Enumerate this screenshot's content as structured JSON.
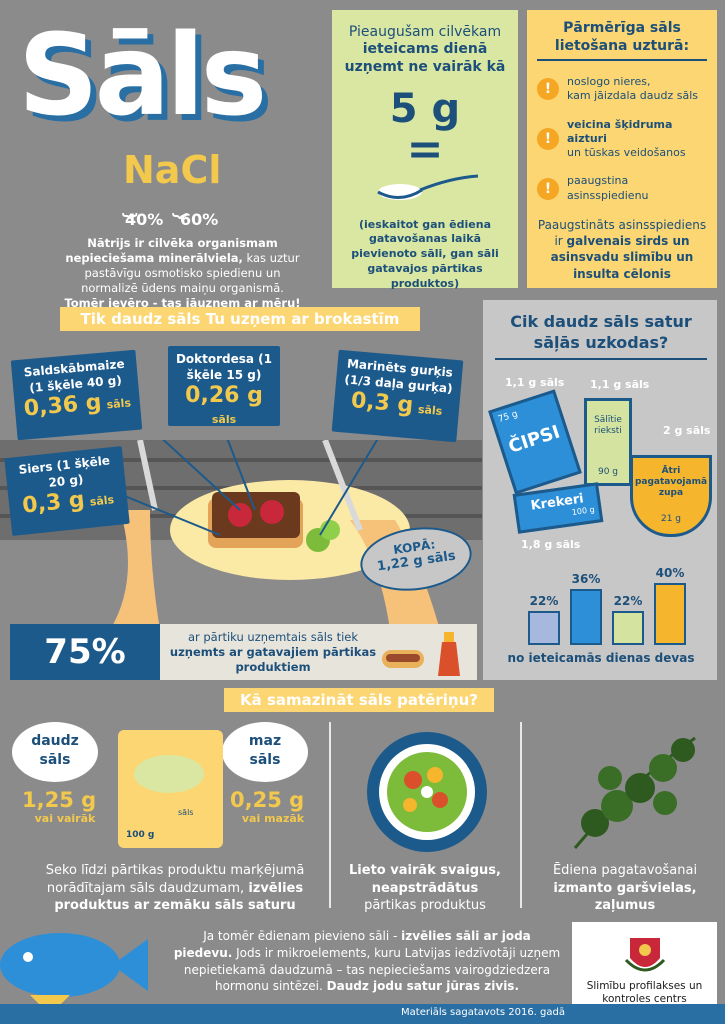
{
  "header": {
    "title": "Sāls",
    "formula": "NaCl",
    "pct_na": "40%",
    "pct_cl": "60%",
    "intro_b1": "Nātrijs ir  cilvēka organismam nepieciešama minerālviela,",
    "intro_t1": " kas uztur pastāvīgu osmotisko spiedienu un normalizē ūdens maiņu organismā.",
    "intro_b2": "Tomēr ievēro - tas jāuzņem ar mēru!"
  },
  "daily": {
    "line1": "Pieaugušam cilvēkam",
    "line2": "ieteicams dienā uzņemt ne vairāk kā",
    "amount": "5 g",
    "eq": "=",
    "note": "(ieskaitot gan ēdiena gatavošanas laikā pievienoto sāli, gan sāli gatavajos pārtikas produktos)"
  },
  "excess": {
    "title": "Pārmērīga sāls lietošana uzturā:",
    "items": [
      {
        "b": "noslogo nieres,",
        "t": "kam jāizdala daudz sāls"
      },
      {
        "b": "veicina šķidruma aizturi",
        "t": "un tūskas veidošanos"
      },
      {
        "b": "paaugstina asinsspiedienu",
        "t": ""
      }
    ],
    "footer_t": "Paaugstināts asinsspiediens ir ",
    "footer_b": "galvenais sirds un asinsvadu slimību un insulta cēlonis"
  },
  "breakfast": {
    "title": "Tik daudz sāls Tu uzņem ar brokastīm",
    "bread_label": "Saldskābmaize (1 šķēle 40 g)",
    "bread_amt": "0,36 g",
    "sausage_label": "Doktordesa (1 šķēle 15 g)",
    "sausage_amt": "0,26 g",
    "pickle_label": "Marinēts gurķis (1/3 daļa gurķa)",
    "pickle_amt": "0,3 g",
    "cheese_label": "Siers (1 šķēle 20 g)",
    "cheese_amt": "0,3 g",
    "unit": "sāls",
    "total_label": "KOPĀ:",
    "total_amt": "1,22 g sāls"
  },
  "processed": {
    "pct": "75%",
    "t1": "ar pārtiku uzņemtais sāls tiek ",
    "b1": "uzņemts ar gatavajiem pārtikas produktiem"
  },
  "snacks": {
    "title": "Cik daudz sāls satur sāļās uzkodas?",
    "chips_amt": "1,1 g sāls",
    "chips_label": "ČIPSI",
    "chips_size": "75 g",
    "nuts_amt": "1,1 g sāls",
    "nuts_label": "Sālītie rieksti",
    "nuts_size": "90 g",
    "soup_amt": "2 g sāls",
    "soup_label": "Ātri pagatavojamā zupa",
    "soup_size": "21 g",
    "crackers_amt": "1,8 g sāls",
    "crackers_label": "Krekeri",
    "crackers_size": "100 g",
    "bars": [
      {
        "label": "22%",
        "value": 22,
        "color": "#a7b8de"
      },
      {
        "label": "36%",
        "value": 36,
        "color": "#2d8fd8"
      },
      {
        "label": "22%",
        "value": 22,
        "color": "#d4e4a0"
      },
      {
        "label": "40%",
        "value": 40,
        "color": "#f5b52c"
      }
    ],
    "caption": "no ieteicamās dienas devas"
  },
  "reduce": {
    "title": "Kā samazināt sāls patēriņu?",
    "high_title": "daudz sāls",
    "high_amt": "1,25 g",
    "high_sub": "vai vairāk",
    "low_title": "maz sāls",
    "low_amt": "0,25 g",
    "low_sub": "vai mazāk",
    "pack_size": "100 g",
    "pack_label": "sāls",
    "col1_t": "Seko līdzi pārtikas produktu marķējumā norādītajam sāls daudzumam, ",
    "col1_b": "izvēlies produktus ar zemāku sāls saturu",
    "col2_b": "Lieto vairāk svaigus, neapstrādātus",
    "col2_t": "pārtikas produktus",
    "col3_t": "Ēdiena pagatavošanai ",
    "col3_b": "izmanto garšvielas, zaļumus"
  },
  "iodine": {
    "t1": "Ja tomēr ēdienam pievieno sāli - ",
    "b1": "izvēlies sāli ar joda piedevu.",
    "t2": " Jods ir mikroelements, kuru Latvijas iedzīvotāji uzņem nepietiekamā daudzumā – tas nepieciešams vairogdziedzera hormonu sintēzei. ",
    "b2": "Daudz jodu satur jūras zivis."
  },
  "logo": {
    "text": "Slimību profilakses un kontroles centrs"
  },
  "footer": {
    "text": "Materiāls sagatavots 2016. gadā"
  }
}
